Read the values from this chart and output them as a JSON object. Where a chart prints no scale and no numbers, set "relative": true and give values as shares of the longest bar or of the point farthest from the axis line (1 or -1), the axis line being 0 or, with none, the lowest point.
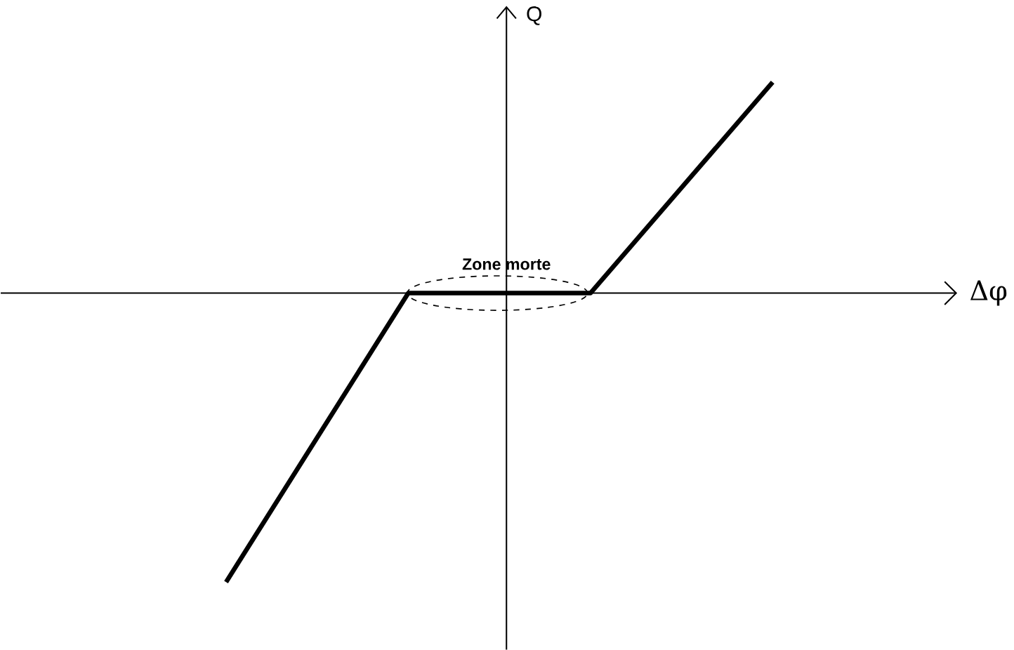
{
  "chart_data": {
    "type": "line",
    "relative": true,
    "xlabel": "Δφ",
    "ylabel": "Q",
    "categories": [
      null,
      null,
      null,
      null
    ],
    "series": [
      {
        "color": "#000000",
        "values": [
          -1,
          0,
          0,
          0.73
        ]
      }
    ],
    "annotations": [
      "Zone morte"
    ],
    "marker": "none",
    "line_style": "solid"
  }
}
